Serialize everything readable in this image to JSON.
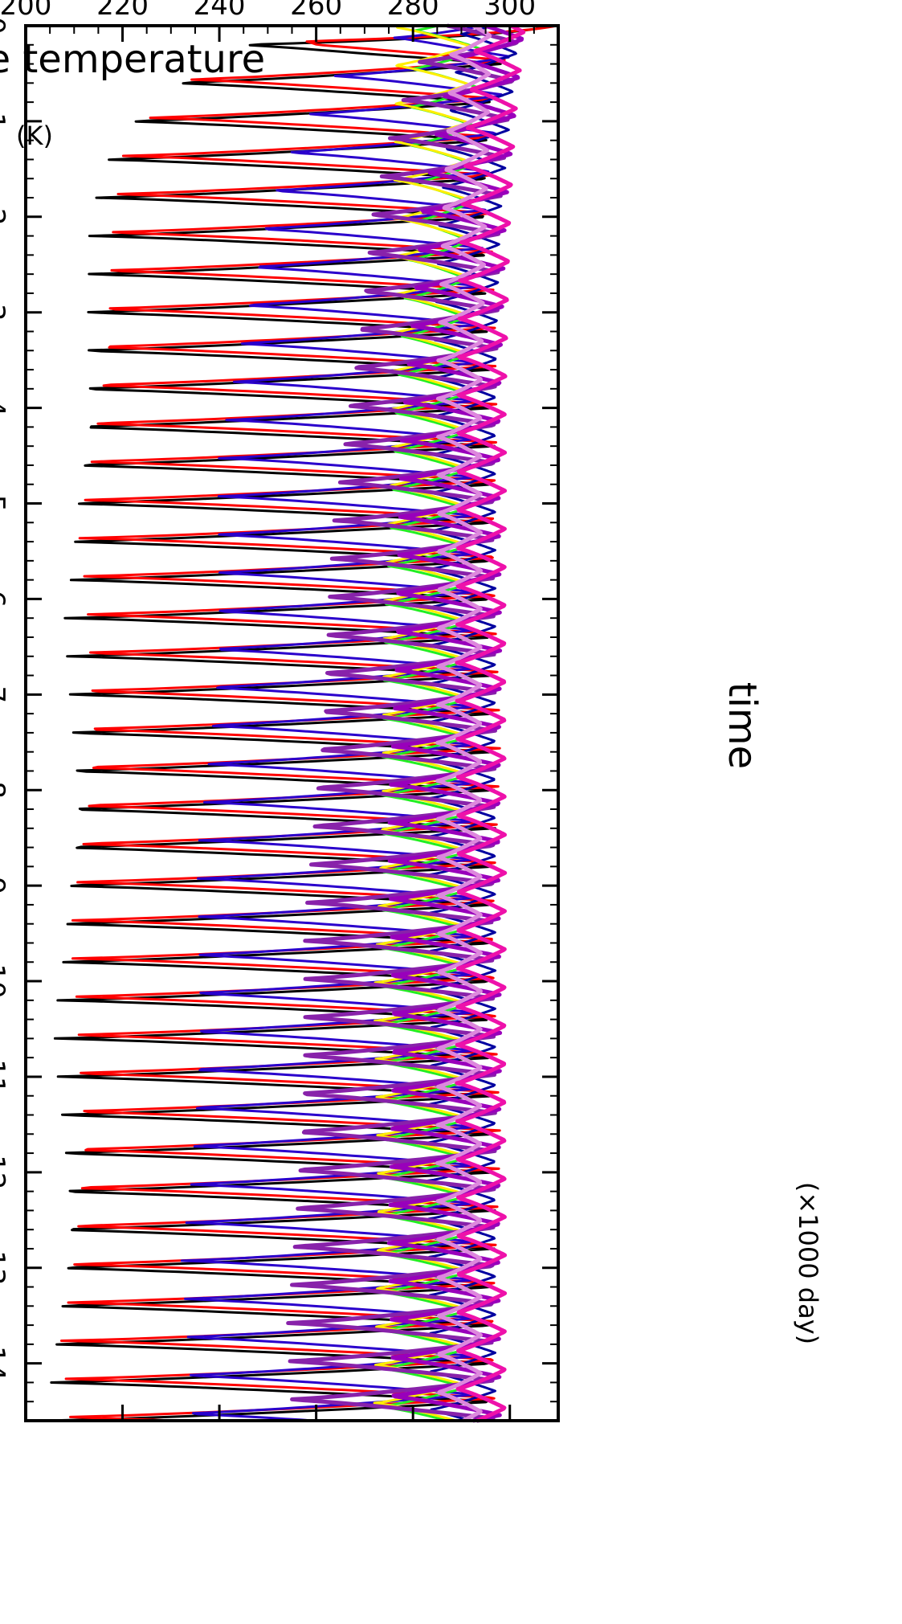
{
  "chart_data": {
    "type": "line",
    "orientation": "rotated-90-clockwise",
    "title": "",
    "xlabel": "time",
    "x_unit_label": "(×1000 day)",
    "ylabel": "surface temperature",
    "y_unit_label": "(K)",
    "xlim": [
      0,
      14.6
    ],
    "ylim": [
      200,
      310
    ],
    "x_ticks": [
      0,
      1,
      2,
      3,
      4,
      5,
      6,
      7,
      8,
      9,
      10,
      11,
      12,
      13,
      14
    ],
    "x_tick_labels": [
      "0",
      "1",
      "2",
      "3",
      "4",
      "5",
      "6",
      "7",
      "8",
      "9",
      "10",
      "11",
      "12",
      "13",
      "14"
    ],
    "y_ticks": [
      200,
      220,
      240,
      260,
      280,
      300
    ],
    "y_tick_labels": [
      "200",
      "220",
      "240",
      "260",
      "280",
      "300"
    ],
    "grid": false,
    "legend": "none",
    "oscillation_period": 0.4,
    "series": [
      {
        "color": "#000000",
        "x": [
          0,
          0.2,
          0.3,
          0.6,
          0.9,
          1.3,
          1.7,
          2.1,
          2.5,
          2.8,
          3.4,
          4.2,
          5.0,
          6.0,
          7.2,
          8.0,
          9.0,
          10.0,
          11.0,
          12.0,
          13.0,
          14.0,
          14.6
        ],
        "min": [
          306,
          244,
          236,
          230,
          222,
          216,
          214,
          213,
          212,
          211,
          210,
          209,
          208,
          208,
          207,
          207,
          206,
          206,
          205,
          205,
          205,
          204,
          204
        ],
        "max": [
          308,
          300,
          299,
          297,
          296,
          296,
          296,
          296,
          296,
          296,
          296,
          297,
          297,
          297,
          297,
          297,
          297,
          297,
          297,
          297,
          297,
          297,
          297
        ]
      },
      {
        "color": "#ff0000",
        "x": [
          0,
          0.2,
          0.3,
          0.6,
          0.9,
          1.3,
          1.7,
          2.1,
          2.5,
          2.8,
          3.4,
          4.2,
          5.0,
          6.0,
          7.2,
          8.0,
          9.0,
          10.0,
          11.0,
          12.0,
          13.0,
          14.0,
          14.6
        ],
        "min": [
          308,
          246,
          240,
          232,
          226,
          220,
          218,
          216,
          215,
          214,
          213,
          212,
          211,
          211,
          210,
          210,
          209,
          209,
          208,
          208,
          208,
          207,
          207
        ],
        "max": [
          310,
          301,
          300,
          298,
          297,
          297,
          297,
          297,
          297,
          297,
          297,
          298,
          298,
          298,
          298,
          298,
          298,
          298,
          298,
          298,
          298,
          298,
          298
        ]
      },
      {
        "color": "#2a00cc",
        "x": [
          0,
          0.5,
          1.0,
          1.5,
          2.0,
          2.5,
          3.0,
          4.0,
          5.0,
          6.0,
          7.0,
          8.0,
          9.0,
          10.0,
          11.0,
          12.0,
          13.0,
          14.0,
          14.6
        ],
        "min": [
          280,
          264,
          257,
          252,
          248,
          246,
          244,
          241,
          239,
          238,
          237,
          236,
          235,
          234,
          233,
          233,
          232,
          232,
          232
        ],
        "max": [
          301,
          300,
          298,
          296,
          295,
          294,
          294,
          293,
          293,
          293,
          293,
          293,
          293,
          293,
          293,
          293,
          293,
          293,
          293
        ]
      },
      {
        "color": "#0000a0",
        "x": [
          0,
          1,
          2,
          4,
          6,
          8,
          10,
          12,
          14,
          14.6
        ],
        "min": [
          290,
          287,
          285,
          284,
          283,
          283,
          283,
          283,
          283,
          283
        ],
        "max": [
          302,
          300,
          298,
          297,
          297,
          297,
          297,
          297,
          297,
          297
        ]
      },
      {
        "color": "#22ee22",
        "x": [
          0,
          1,
          2,
          3,
          4,
          5,
          6,
          7,
          8,
          9,
          10,
          11,
          12,
          13,
          14,
          14.6
        ],
        "min": [
          280,
          279,
          280,
          278,
          276,
          275,
          274,
          274,
          273,
          273,
          273,
          273,
          273,
          273,
          273,
          273
        ],
        "max": [
          295,
          293,
          292,
          291,
          291,
          291,
          291,
          291,
          291,
          291,
          291,
          291,
          291,
          291,
          291,
          291
        ]
      },
      {
        "color": "#ffee00",
        "x": [
          0,
          2,
          4,
          6,
          8,
          10,
          12,
          14,
          14.6
        ],
        "min": [
          276,
          276,
          275,
          274,
          273,
          272,
          272,
          272,
          272
        ],
        "max": [
          292,
          291,
          290,
          290,
          290,
          290,
          290,
          290,
          290
        ]
      },
      {
        "color": "#8822aa",
        "x": [
          0,
          1,
          2,
          4,
          6,
          8,
          10,
          12,
          14,
          14.6
        ],
        "min": [
          284,
          276,
          271,
          266,
          262,
          259,
          257,
          255,
          254,
          254
        ],
        "max": [
          302,
          300,
          298,
          297,
          297,
          297,
          297,
          297,
          297,
          297
        ]
      },
      {
        "color": "#9900bb",
        "x": [
          0,
          1,
          2,
          4,
          6,
          8,
          10,
          12,
          14,
          14.6
        ],
        "min": [
          290,
          285,
          281,
          278,
          276,
          275,
          275,
          275,
          275,
          275
        ],
        "max": [
          303,
          301,
          299,
          298,
          298,
          298,
          298,
          298,
          298,
          298
        ]
      },
      {
        "color": "#dd88dd",
        "x": [
          0,
          2,
          4,
          6,
          8,
          10,
          12,
          14,
          14.6
        ],
        "min": [
          288,
          286,
          285,
          285,
          285,
          285,
          285,
          285,
          285
        ],
        "max": [
          296,
          295,
          294,
          294,
          294,
          294,
          294,
          294,
          294
        ]
      },
      {
        "color": "#ee11aa",
        "x": [
          0,
          1,
          2,
          4,
          6,
          8,
          10,
          12,
          14,
          14.6
        ],
        "min": [
          293,
          291,
          290,
          289,
          289,
          289,
          289,
          289,
          289,
          289
        ],
        "max": [
          303,
          301,
          300,
          299,
          299,
          299,
          299,
          299,
          299,
          299
        ]
      }
    ]
  }
}
